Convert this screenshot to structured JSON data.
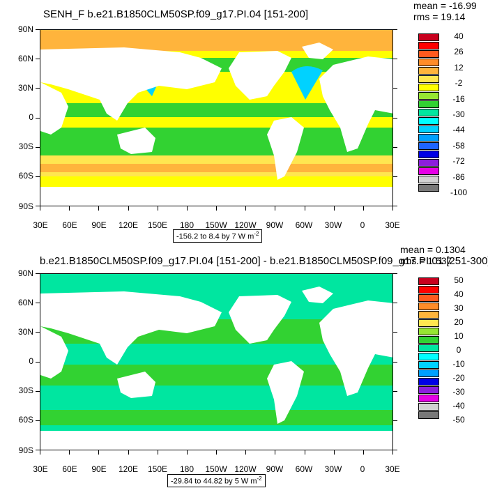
{
  "panels": [
    {
      "title": "SENH_F b.e21.B1850CLM50SP.f09_g17.PI.04 [151-200]",
      "mean": "mean = -16.99",
      "rms": "rms = 19.14",
      "range_text": "-156.2 to 8.4 by 7  W m",
      "range_unit_exp": "-2",
      "colorbar_labels": [
        "40",
        "26",
        "12",
        "-2",
        "-16",
        "-30",
        "-44",
        "-58",
        "-72",
        "-86",
        "-100"
      ],
      "colorbar_colors": [
        "#c8001e",
        "#ff0000",
        "#ff5a1e",
        "#ff8c28",
        "#ffb43c",
        "#ffe650",
        "#ffff00",
        "#96e632",
        "#32d232",
        "#00e6a0",
        "#00ffff",
        "#00d2ff",
        "#00a0ff",
        "#1e64ff",
        "#0000e6",
        "#8c1edc",
        "#e600e6",
        "#d2d2d2",
        "#787878"
      ]
    },
    {
      "title": "b.e21.B1850CLM50SP.f09_g17.PI.04 [151-200] - b.e21.B1850CLM50SP.f09_g17.PI.01 [251-300]",
      "mean": "mean = 0.1304",
      "rms": "rms = 1.537",
      "range_text": "-29.84 to 44.82 by 5  W m",
      "range_unit_exp": "-2",
      "colorbar_labels": [
        "50",
        "40",
        "30",
        "20",
        "10",
        "0",
        "-10",
        "-20",
        "-30",
        "-40",
        "-50"
      ],
      "colorbar_colors": [
        "#c8001e",
        "#ff0000",
        "#ff5a1e",
        "#ff8c28",
        "#ffb43c",
        "#ffe650",
        "#96e632",
        "#32d232",
        "#00e6a0",
        "#00ffff",
        "#00d2ff",
        "#00a0ff",
        "#0000e6",
        "#8c1edc",
        "#e600e6",
        "#d2d2d2",
        "#787878"
      ]
    }
  ],
  "axes": {
    "lat_labels": [
      "90N",
      "60N",
      "30N",
      "0",
      "30S",
      "60S",
      "90S"
    ],
    "lon_labels": [
      "30E",
      "60E",
      "90E",
      "120E",
      "150E",
      "180",
      "150W",
      "120W",
      "90W",
      "60W",
      "30W",
      "0",
      "30E"
    ]
  },
  "field_colors": {
    "land": "#ffffff",
    "top_dominant": "#ffff00",
    "top_secondary": "#32d232",
    "top_polar": "#ffb43c",
    "top_southern": "#ffe650",
    "top_southern_warm": "#ffb43c",
    "top_kuroshio": "#00d2ff",
    "bot_dominant": "#32d232",
    "bot_secondary": "#00e6a0",
    "bot_polar": "#00e6a0"
  }
}
